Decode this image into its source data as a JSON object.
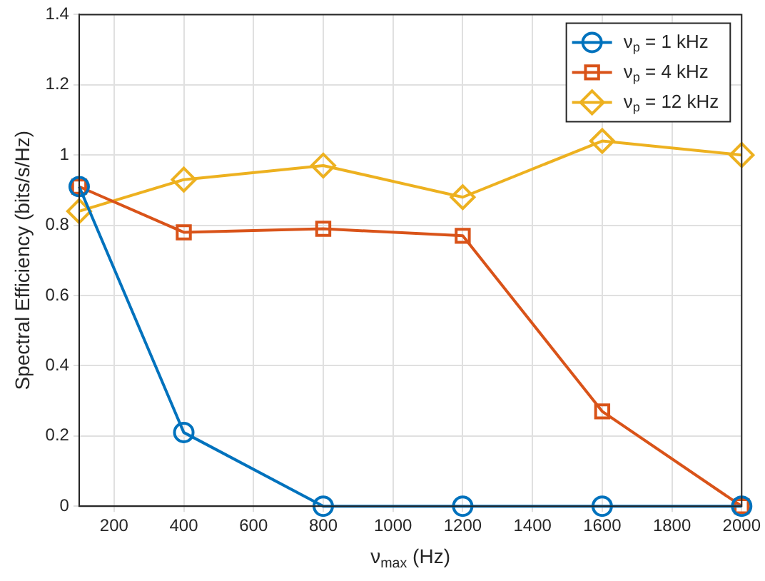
{
  "chart_data": {
    "type": "line",
    "xlabel": "ν$_{max}$ (Hz)",
    "ylabel": "Spectral Efficiency (bits/s/Hz)",
    "x": [
      100,
      400,
      800,
      1200,
      1600,
      2000
    ],
    "series": [
      {
        "name": "ν$_{p}$ = 1 kHz",
        "color": "#0072bd",
        "marker": "circle",
        "values": [
          0.91,
          0.21,
          0,
          0,
          0,
          0
        ]
      },
      {
        "name": "ν$_{p}$ = 4 kHz",
        "color": "#d95319",
        "marker": "square",
        "values": [
          0.91,
          0.78,
          0.79,
          0.77,
          0.27,
          0
        ]
      },
      {
        "name": "ν$_{p}$ = 12 kHz",
        "color": "#edb120",
        "marker": "diamond",
        "values": [
          0.84,
          0.93,
          0.97,
          0.88,
          1.04,
          1.0
        ]
      }
    ],
    "xlim": [
      100,
      2000
    ],
    "xticks": [
      200,
      400,
      600,
      800,
      1000,
      1200,
      1400,
      1600,
      1800,
      2000
    ],
    "ylim": [
      0,
      1.4
    ],
    "yticks": [
      0,
      0.2,
      0.4,
      0.6,
      0.8,
      1,
      1.2,
      1.4
    ],
    "grid": true,
    "legend": "top right",
    "line_style": "solid"
  }
}
